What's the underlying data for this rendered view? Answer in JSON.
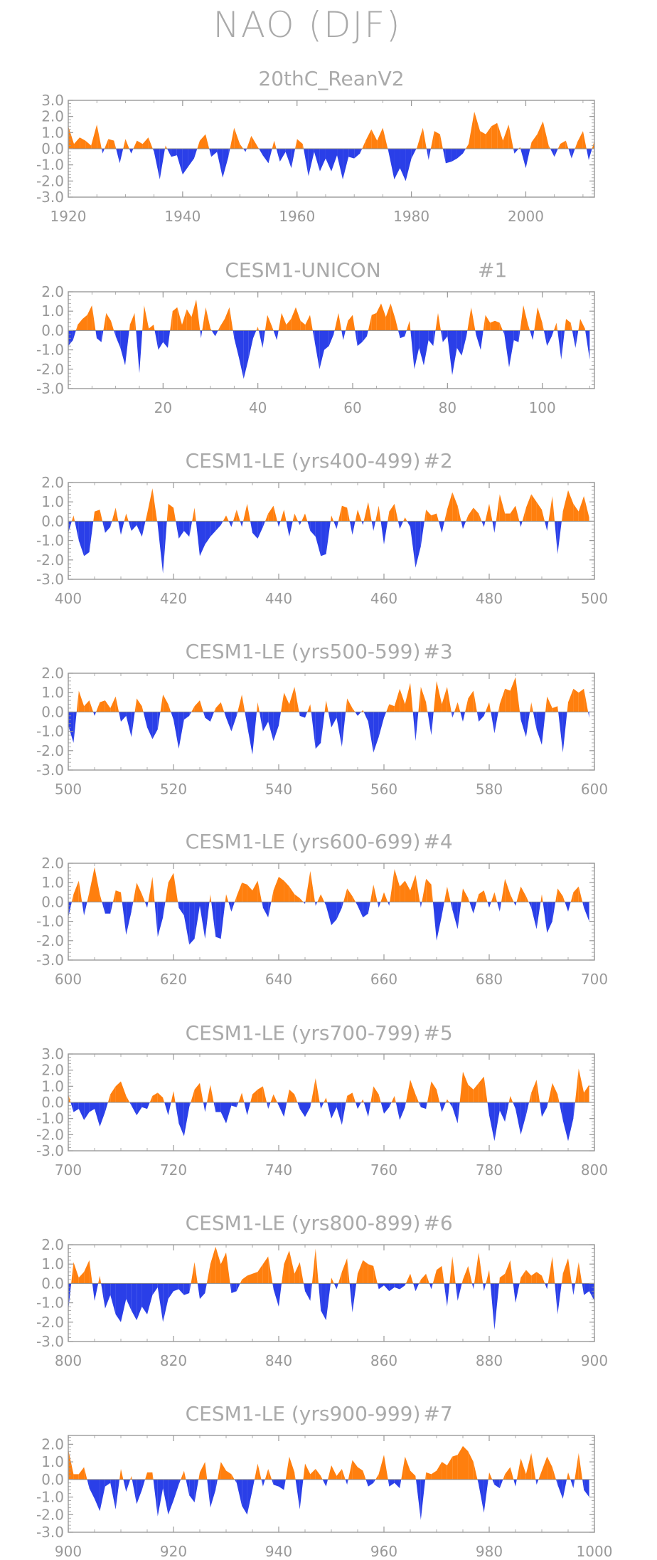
{
  "figure": {
    "title": "NAO (DJF)"
  },
  "colors": {
    "positive": "#ff7f0e",
    "negative": "#2a3fe8",
    "axis": "#999999",
    "text": "#999999"
  },
  "chart_data": [
    {
      "type": "area",
      "title": "20thC_ReanV2",
      "xlim": [
        1920,
        2012
      ],
      "ylim": [
        -3.0,
        3.0
      ],
      "ytick_labels": [
        "3.0",
        "2.0",
        "1.0",
        "0.0",
        "-1.0",
        "-2.0",
        "-3.0"
      ],
      "ytick_values": [
        3,
        2,
        1,
        0,
        -1,
        -2,
        -3
      ],
      "xtick_labels": [
        "1920",
        "1940",
        "1960",
        "1980",
        "2000"
      ],
      "xtick_values": [
        1920,
        1940,
        1960,
        1980,
        2000
      ],
      "x_start": 1920,
      "values": [
        1.4,
        0.3,
        0.7,
        0.5,
        0.2,
        1.5,
        -0.3,
        0.6,
        0.5,
        -0.9,
        0.6,
        -0.3,
        0.5,
        0.3,
        0.7,
        -0.2,
        -1.9,
        0.2,
        -0.5,
        -0.4,
        -1.6,
        -1.1,
        -0.6,
        0.5,
        0.9,
        -0.5,
        -0.2,
        -1.8,
        -0.5,
        1.3,
        0.3,
        -0.2,
        0.8,
        0.2,
        -0.4,
        -0.9,
        0.5,
        -0.8,
        -0.2,
        -1.2,
        0.6,
        0.3,
        -1.7,
        -0.2,
        -1.4,
        -0.6,
        -1.4,
        -0.4,
        -1.9,
        -0.5,
        -0.6,
        -0.3,
        0.5,
        1.2,
        0.5,
        1.3,
        -0.2,
        -1.9,
        -1.2,
        -2.0,
        -0.6,
        0.1,
        1.3,
        -0.7,
        1.1,
        0.9,
        -0.9,
        -0.8,
        -0.6,
        -0.3,
        0.3,
        2.3,
        1.1,
        0.9,
        1.4,
        1.6,
        0.5,
        1.5,
        -0.3,
        0.1,
        -1.2,
        0.4,
        0.9,
        1.7,
        0.2,
        -0.5,
        0.3,
        0.5,
        -0.6,
        0.4,
        1.1,
        -0.7,
        0.5
      ]
    },
    {
      "type": "area",
      "title": "CESM1-UNICON",
      "label": "#1",
      "xlim": [
        0,
        111
      ],
      "ylim": [
        -3.0,
        2.0
      ],
      "ytick_labels": [
        "2.0",
        "1.0",
        "0.0",
        "-1.0",
        "-2.0",
        "-3.0"
      ],
      "ytick_values": [
        2,
        1,
        0,
        -1,
        -2,
        -3
      ],
      "xtick_labels": [
        "20",
        "40",
        "60",
        "80",
        "100"
      ],
      "xtick_values": [
        20,
        40,
        60,
        80,
        100
      ],
      "x_start": 0,
      "values": [
        -0.8,
        -0.5,
        0.3,
        0.6,
        0.8,
        1.3,
        -0.4,
        -0.6,
        0.9,
        0.5,
        -0.3,
        -0.9,
        -1.8,
        0.3,
        0.9,
        -2.2,
        1.3,
        0.1,
        0.3,
        -1.0,
        -0.6,
        -0.9,
        1.0,
        1.2,
        0.3,
        1.1,
        0.7,
        1.6,
        -0.4,
        1.2,
        0.1,
        -0.3,
        0.2,
        0.6,
        1.2,
        -0.4,
        -1.4,
        -2.5,
        -1.5,
        -0.4,
        0.2,
        -0.9,
        0.8,
        0.2,
        -0.5,
        0.9,
        0.3,
        0.6,
        1.2,
        0.5,
        0.3,
        0.8,
        -0.6,
        -2.0,
        -1.0,
        -0.8,
        -0.2,
        0.9,
        -0.5,
        0.5,
        0.8,
        -0.8,
        -0.6,
        -0.3,
        0.8,
        0.9,
        1.4,
        0.7,
        1.4,
        0.6,
        -0.4,
        -0.3,
        0.5,
        -2.0,
        -0.9,
        -1.8,
        -0.5,
        -0.8,
        0.9,
        -0.6,
        -0.3,
        -2.3,
        -0.9,
        -1.3,
        -0.3,
        1.2,
        -0.2,
        -1.0,
        0.8,
        0.4,
        0.5,
        0.4,
        -0.2,
        -1.9,
        -0.5,
        -0.6,
        1.3,
        0.3,
        -0.5,
        1.2,
        0.4,
        -0.8,
        -0.3,
        0.4,
        -1.5,
        0.6,
        0.4,
        -0.9,
        0.6,
        0.1,
        -1.5
      ]
    },
    {
      "type": "area",
      "title": "CESM1-LE (yrs400-499)",
      "label": "#2",
      "xlim": [
        400,
        500
      ],
      "ylim": [
        -3.0,
        2.0
      ],
      "ytick_labels": [
        "2.0",
        "1.0",
        "0.0",
        "-1.0",
        "-2.0",
        "-3.0"
      ],
      "ytick_values": [
        2,
        1,
        0,
        -1,
        -2,
        -3
      ],
      "xtick_labels": [
        "400",
        "420",
        "440",
        "460",
        "480",
        "500"
      ],
      "xtick_values": [
        400,
        420,
        440,
        460,
        480,
        500
      ],
      "x_start": 400,
      "values": [
        -0.6,
        0.3,
        -1.0,
        -1.8,
        -1.6,
        0.5,
        0.6,
        -0.6,
        -0.3,
        0.7,
        -0.7,
        0.4,
        -0.5,
        -0.2,
        -0.8,
        0.4,
        1.7,
        -0.2,
        -2.7,
        0.9,
        0.7,
        -0.9,
        -0.5,
        -0.8,
        0.7,
        -1.8,
        -1.2,
        -0.8,
        -0.5,
        -0.2,
        0.3,
        -0.3,
        0.6,
        -0.3,
        0.9,
        -0.6,
        -0.9,
        -0.3,
        0.4,
        0.8,
        -0.3,
        0.6,
        -0.8,
        0.4,
        -0.2,
        0.4,
        -0.5,
        -0.8,
        -1.8,
        -1.7,
        0.3,
        -0.4,
        0.8,
        0.7,
        -0.7,
        0.6,
        -0.2,
        1.0,
        -0.5,
        0.8,
        -1.2,
        0.5,
        0.9,
        -0.4,
        0.2,
        -0.3,
        -2.4,
        -1.3,
        0.6,
        0.3,
        0.4,
        -0.6,
        0.6,
        1.5,
        0.8,
        -0.4,
        0.3,
        0.7,
        0.4,
        -0.3,
        0.9,
        -0.6,
        1.4,
        0.4,
        0.4,
        0.8,
        -0.3,
        0.7,
        1.4,
        1.0,
        0.6,
        -0.5,
        1.3,
        -1.7,
        0.5,
        1.6,
        0.9,
        0.5,
        1.3,
        0.2
      ]
    },
    {
      "type": "area",
      "title": "CESM1-LE (yrs500-599)",
      "label": "#3",
      "xlim": [
        500,
        600
      ],
      "ylim": [
        -3.0,
        2.0
      ],
      "ytick_labels": [
        "2.0",
        "1.0",
        "0.0",
        "-1.0",
        "-2.0",
        "-3.0"
      ],
      "ytick_values": [
        2,
        1,
        0,
        -1,
        -2,
        -3
      ],
      "xtick_labels": [
        "500",
        "520",
        "540",
        "560",
        "580",
        "600"
      ],
      "xtick_values": [
        500,
        520,
        540,
        560,
        580,
        600
      ],
      "x_start": 500,
      "values": [
        -0.7,
        -1.6,
        1.1,
        0.3,
        0.6,
        -0.2,
        0.5,
        0.6,
        0.2,
        0.8,
        -0.5,
        -0.2,
        -1.3,
        0.7,
        0.3,
        -0.8,
        -1.4,
        -0.9,
        0.9,
        0.4,
        -0.4,
        -1.9,
        -0.4,
        -0.2,
        0.3,
        0.6,
        -0.3,
        -0.5,
        0.2,
        0.5,
        -0.3,
        -1.0,
        -0.2,
        0.9,
        -0.7,
        -2.2,
        0.5,
        -1.0,
        -0.5,
        -1.5,
        -0.7,
        1.0,
        0.4,
        1.3,
        -0.2,
        -0.3,
        0.4,
        -1.9,
        -1.6,
        0.6,
        -0.8,
        -0.3,
        -1.8,
        0.7,
        0.2,
        -0.2,
        0.1,
        -0.5,
        -2.1,
        -1.3,
        -0.3,
        0.4,
        0.3,
        1.2,
        0.4,
        1.5,
        -1.5,
        1.3,
        0.5,
        -1.2,
        1.6,
        0.4,
        1.3,
        -0.3,
        0.5,
        -0.5,
        0.7,
        1.1,
        -0.5,
        -0.2,
        0.5,
        -1.1,
        0.4,
        1.2,
        1.1,
        1.8,
        -0.4,
        -1.3,
        0.5,
        -0.9,
        -1.7,
        0.8,
        0.2,
        0.3,
        -2.1,
        0.5,
        1.2,
        1.0,
        1.2,
        -0.3
      ]
    },
    {
      "type": "area",
      "title": "CESM1-LE (yrs600-699)",
      "label": "#4",
      "xlim": [
        600,
        700
      ],
      "ylim": [
        -3.0,
        2.0
      ],
      "ytick_labels": [
        "2.0",
        "1.0",
        "0.0",
        "-1.0",
        "-2.0",
        "-3.0"
      ],
      "ytick_values": [
        2,
        1,
        0,
        -1,
        -2,
        -3
      ],
      "xtick_labels": [
        "600",
        "620",
        "640",
        "660",
        "680",
        "700"
      ],
      "xtick_values": [
        600,
        620,
        640,
        660,
        680,
        700
      ],
      "x_start": 600,
      "values": [
        -0.8,
        0.4,
        1.1,
        -0.7,
        0.5,
        1.8,
        0.4,
        -0.6,
        -0.6,
        0.6,
        0.5,
        -1.7,
        -0.5,
        1.0,
        0.4,
        -0.3,
        1.3,
        -1.8,
        -0.8,
        1.0,
        1.5,
        -0.3,
        -0.7,
        -2.2,
        -1.9,
        -0.2,
        -1.9,
        0.4,
        -1.8,
        -1.9,
        0.4,
        -0.5,
        0.3,
        1.0,
        0.9,
        0.6,
        1.1,
        -0.3,
        -0.8,
        0.6,
        1.3,
        1.1,
        0.8,
        0.4,
        0.2,
        -0.1,
        1.6,
        -0.2,
        0.4,
        -0.2,
        -1.2,
        -0.9,
        -0.3,
        0.7,
        0.3,
        -0.2,
        -0.8,
        -0.6,
        0.9,
        -0.3,
        0.5,
        -0.2,
        1.7,
        0.8,
        1.1,
        0.6,
        1.4,
        -0.3,
        1.2,
        0.9,
        -2.0,
        -0.7,
        0.8,
        -0.4,
        -1.4,
        0.7,
        0.2,
        -0.6,
        0.4,
        0.6,
        -0.3,
        0.5,
        -0.5,
        1.2,
        0.4,
        -0.2,
        0.8,
        0.3,
        -0.3,
        -1.4,
        0.4,
        -1.6,
        -1.0,
        0.7,
        0.3,
        -0.5,
        0.5,
        0.8,
        -0.3,
        -1.0
      ]
    },
    {
      "type": "area",
      "title": "CESM1-LE (yrs700-799)",
      "label": "#5",
      "xlim": [
        700,
        800
      ],
      "ylim": [
        -3.0,
        3.0
      ],
      "ytick_labels": [
        "3.0",
        "2.0",
        "1.0",
        "0.0",
        "-1.0",
        "-2.0",
        "-3.0"
      ],
      "ytick_values": [
        3,
        2,
        1,
        0,
        -1,
        -2,
        -3
      ],
      "xtick_labels": [
        "700",
        "720",
        "740",
        "760",
        "780",
        "800"
      ],
      "xtick_values": [
        700,
        720,
        740,
        760,
        780,
        800
      ],
      "x_start": 700,
      "values": [
        0.5,
        -0.6,
        -0.4,
        -1.1,
        -0.6,
        -0.4,
        -1.5,
        -0.6,
        0.5,
        1.0,
        1.3,
        0.4,
        -0.2,
        -0.8,
        -0.3,
        -0.4,
        0.4,
        0.6,
        0.3,
        -0.8,
        0.7,
        -1.3,
        -2.1,
        -0.3,
        0.8,
        1.2,
        -0.6,
        1.1,
        -0.6,
        -0.6,
        -1.3,
        -0.2,
        -0.3,
        0.6,
        -0.8,
        0.5,
        0.8,
        1.0,
        -0.4,
        0.5,
        -0.2,
        -0.9,
        0.8,
        0.5,
        -0.4,
        -0.9,
        -0.3,
        1.5,
        -0.4,
        0.3,
        -1.0,
        -0.3,
        -1.4,
        0.4,
        0.6,
        -0.4,
        0.2,
        -0.9,
        1.0,
        0.5,
        -0.7,
        -0.3,
        0.4,
        -1.1,
        -0.3,
        1.4,
        0.5,
        -0.3,
        -0.4,
        1.3,
        0.8,
        -0.6,
        0.2,
        -0.3,
        -1.3,
        1.9,
        1.1,
        0.8,
        1.2,
        1.6,
        -0.8,
        -2.4,
        -0.5,
        -1.2,
        0.4,
        -0.4,
        -2.0,
        -0.8,
        0.6,
        1.4,
        -0.9,
        -0.3,
        1.2,
        0.5,
        -1.1,
        -2.4,
        -1.0,
        2.1,
        0.6,
        1.1
      ]
    },
    {
      "type": "area",
      "title": "CESM1-LE (yrs800-899)",
      "label": "#6",
      "xlim": [
        800,
        900
      ],
      "ylim": [
        -3.0,
        2.0
      ],
      "ytick_labels": [
        "2.0",
        "1.0",
        "0.0",
        "-1.0",
        "-2.0",
        "-3.0"
      ],
      "ytick_values": [
        2,
        1,
        0,
        -1,
        -2,
        -3
      ],
      "xtick_labels": [
        "800",
        "820",
        "840",
        "860",
        "880",
        "900"
      ],
      "xtick_values": [
        800,
        820,
        840,
        860,
        880,
        900
      ],
      "x_start": 800,
      "values": [
        -1.4,
        1.1,
        0.3,
        0.6,
        1.2,
        -0.9,
        0.4,
        -1.3,
        -0.6,
        -1.6,
        -2.0,
        -0.8,
        -1.4,
        -1.9,
        -1.2,
        -1.6,
        -0.6,
        -0.2,
        -2.0,
        -0.8,
        -0.4,
        -0.3,
        -0.6,
        -0.5,
        1.1,
        -0.8,
        -0.5,
        1.0,
        1.9,
        1.0,
        1.6,
        -0.5,
        -0.4,
        0.2,
        0.4,
        0.5,
        0.6,
        1.0,
        1.4,
        -0.3,
        -1.2,
        1.0,
        1.7,
        0.5,
        1.1,
        -0.4,
        -0.9,
        1.8,
        -1.4,
        -1.9,
        0.3,
        -0.3,
        0.6,
        1.3,
        -1.5,
        0.5,
        1.2,
        1.0,
        0.9,
        -0.3,
        -0.1,
        -0.4,
        -0.2,
        -0.3,
        -0.1,
        0.5,
        -0.4,
        0.2,
        0.5,
        -0.3,
        0.7,
        0.9,
        -1.2,
        1.4,
        -0.9,
        0.2,
        0.9,
        -0.3,
        1.6,
        -0.4,
        0.7,
        -2.4,
        0.3,
        0.5,
        1.2,
        -1.0,
        0.3,
        0.7,
        0.4,
        0.6,
        0.4,
        -0.3,
        1.4,
        -1.6,
        0.5,
        1.3,
        -0.6,
        1.1,
        -0.6,
        -0.4,
        -0.9
      ]
    },
    {
      "type": "area",
      "title": "CESM1-LE (yrs900-999)",
      "label": "#7",
      "xlim": [
        900,
        1000
      ],
      "ylim": [
        -3.0,
        2.5
      ],
      "ytick_labels": [
        "2.0",
        "1.0",
        "0.0",
        "-1.0",
        "-2.0",
        "-3.0"
      ],
      "ytick_values": [
        2,
        1,
        0,
        -1,
        -2,
        -3
      ],
      "xtick_labels": [
        "900",
        "920",
        "940",
        "960",
        "980",
        "1000"
      ],
      "xtick_values": [
        900,
        920,
        940,
        960,
        980,
        1000
      ],
      "x_start": 900,
      "values": [
        1.7,
        0.3,
        0.3,
        0.7,
        -0.5,
        -1.1,
        -1.8,
        -0.4,
        -0.2,
        -1.7,
        0.6,
        -0.7,
        0.2,
        -1.4,
        -0.6,
        0.4,
        0.4,
        -2.1,
        -0.5,
        -2.0,
        -1.2,
        -0.3,
        0.5,
        -0.9,
        -1.3,
        0.4,
        1.0,
        -1.6,
        -0.6,
        1.0,
        0.5,
        0.3,
        -0.2,
        -1.5,
        -2.0,
        -0.6,
        0.9,
        -0.4,
        0.6,
        -0.3,
        -0.4,
        -0.6,
        1.3,
        0.4,
        -1.7,
        0.9,
        0.3,
        0.6,
        0.2,
        -0.4,
        0.8,
        0.2,
        0.6,
        -0.3,
        1.1,
        0.7,
        0.5,
        -0.4,
        -0.2,
        0.3,
        1.4,
        -0.4,
        -0.2,
        -0.5,
        1.3,
        0.5,
        0.2,
        -2.3,
        0.4,
        0.3,
        0.5,
        1.0,
        0.8,
        1.3,
        1.4,
        1.9,
        1.6,
        1.0,
        -0.3,
        -1.9,
        0.4,
        -0.3,
        -0.5,
        0.3,
        0.7,
        -0.4,
        1.2,
        0.3,
        1.5,
        -0.3,
        0.5,
        1.3,
        0.7,
        -0.3,
        -1.1,
        0.4,
        -0.5,
        1.5,
        -0.6,
        -1.0
      ]
    }
  ]
}
